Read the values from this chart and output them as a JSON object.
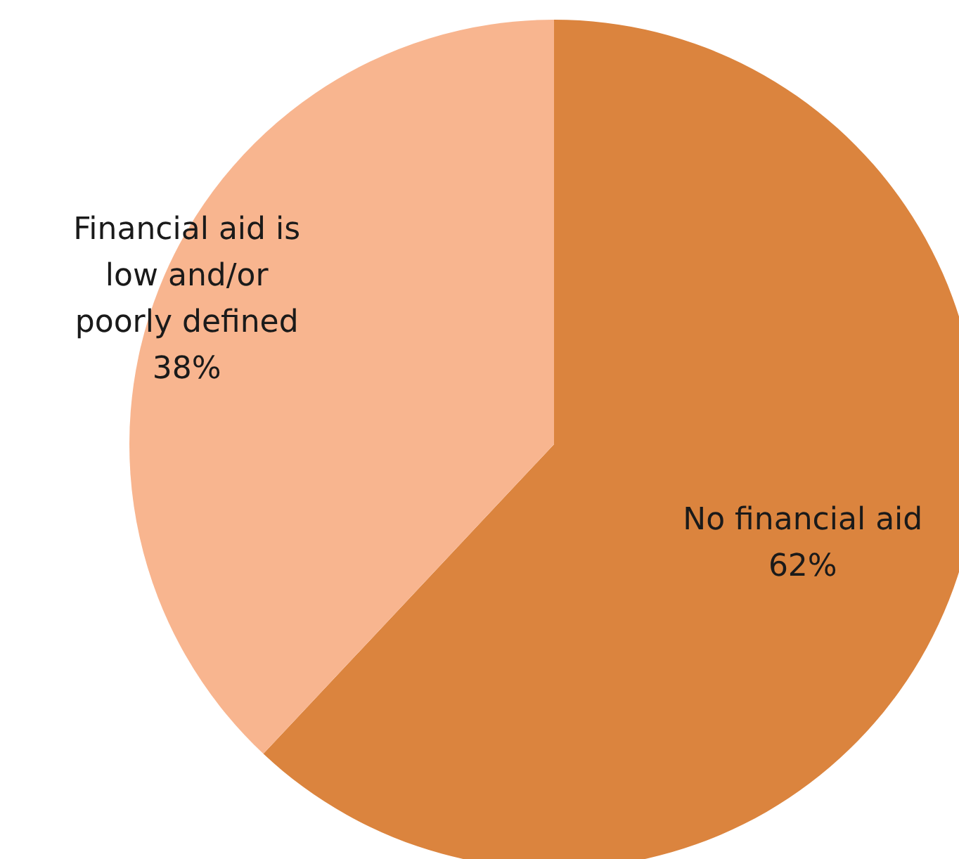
{
  "chart_data": {
    "type": "pie",
    "categories": [
      "No financial aid",
      "Financial aid is low and/or poorly defined"
    ],
    "values": [
      62,
      38
    ],
    "colors": [
      "#db843e",
      "#f8b58f"
    ],
    "value_labels": [
      "62%",
      "38%"
    ]
  }
}
